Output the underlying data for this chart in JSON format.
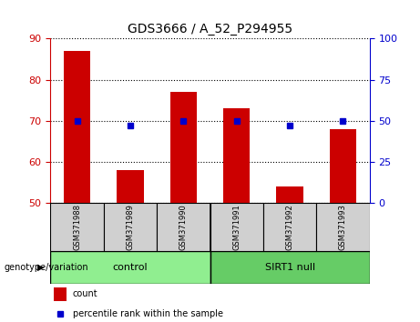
{
  "title": "GDS3666 / A_52_P294955",
  "samples": [
    "GSM371988",
    "GSM371989",
    "GSM371990",
    "GSM371991",
    "GSM371992",
    "GSM371993"
  ],
  "counts": [
    87,
    58,
    77,
    73,
    54,
    68
  ],
  "percentile_ranks_right": [
    50,
    47,
    50,
    50,
    47,
    50
  ],
  "ylim_left": [
    50,
    90
  ],
  "ylim_right": [
    0,
    100
  ],
  "yticks_left": [
    50,
    60,
    70,
    80,
    90
  ],
  "yticks_right": [
    0,
    25,
    50,
    75,
    100
  ],
  "bar_color": "#cc0000",
  "dot_color": "#0000cc",
  "control_color": "#90ee90",
  "sirt1_color": "#66cc66",
  "sample_bg_color": "#d0d0d0",
  "grid_color": "black",
  "legend_count_label": "count",
  "legend_pct_label": "percentile rank within the sample",
  "genotype_label": "genotype/variation"
}
